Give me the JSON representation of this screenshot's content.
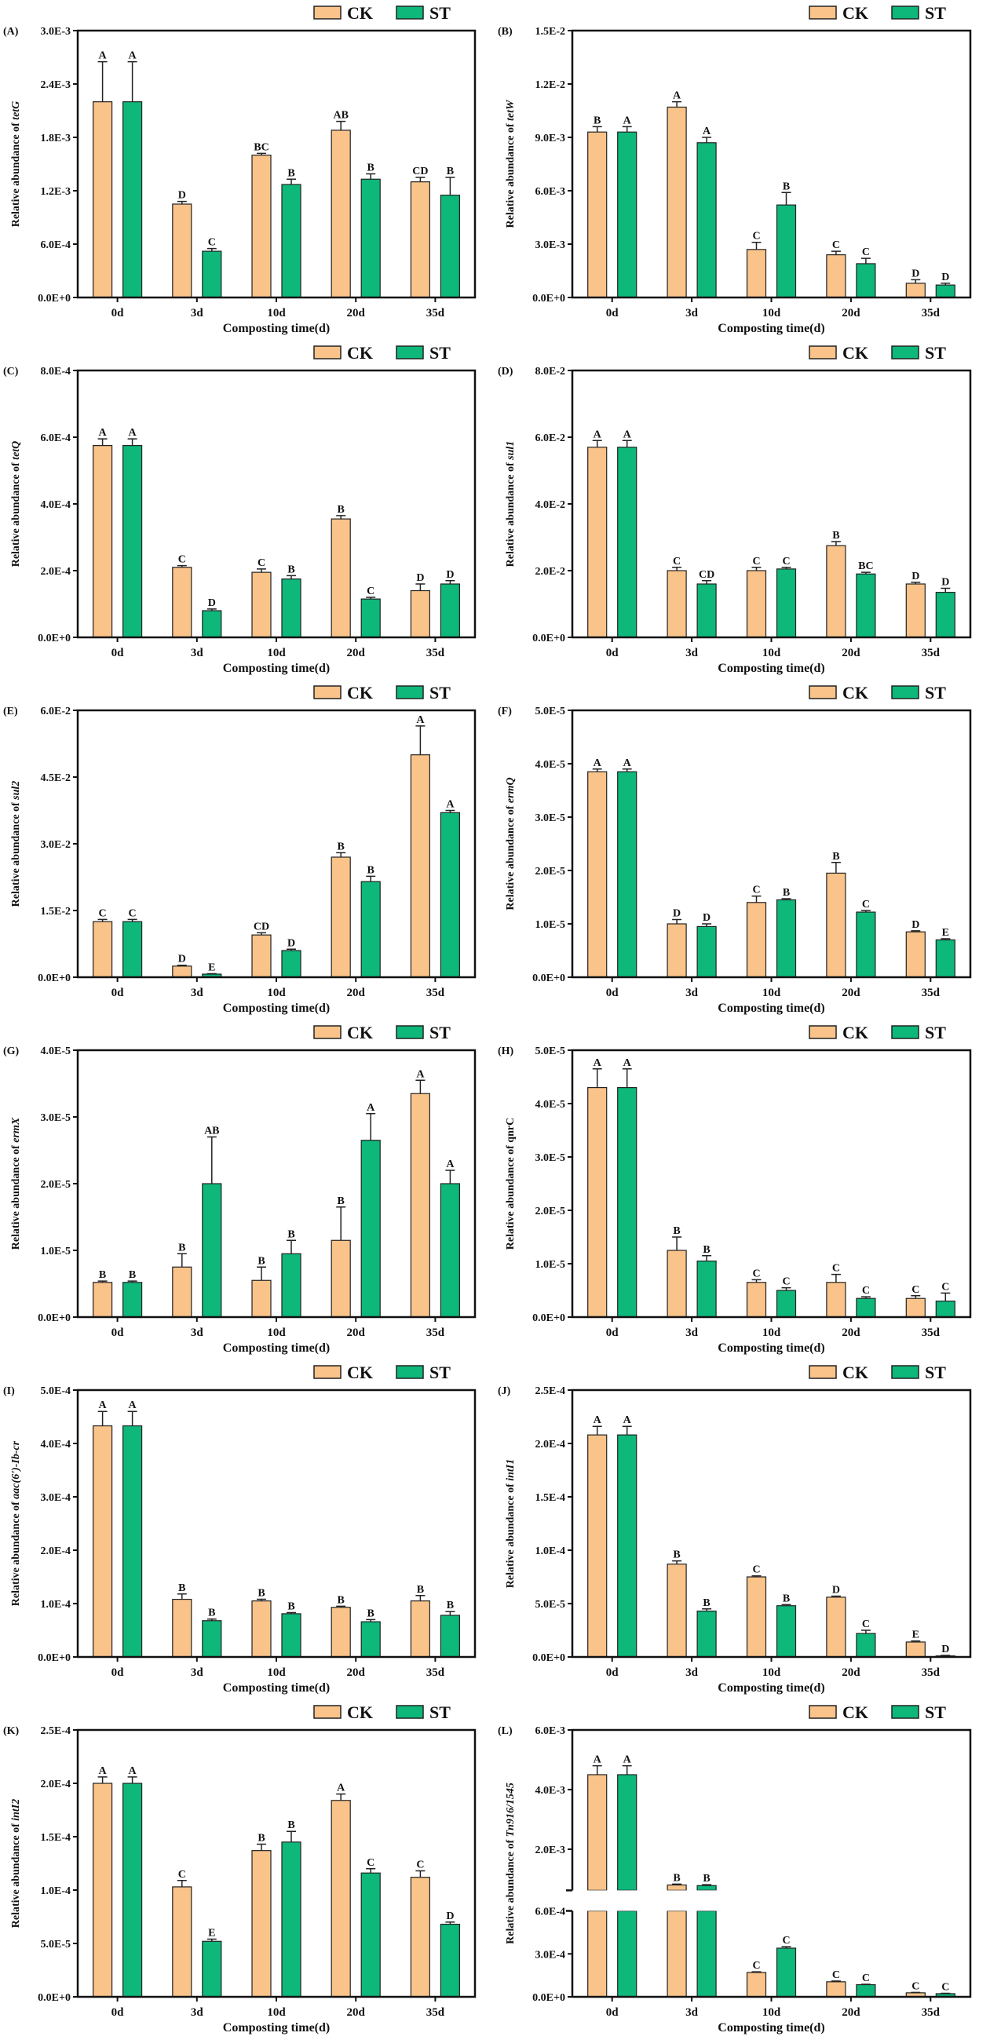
{
  "colors": {
    "CK": "#F9C38A",
    "ST": "#0DB87A",
    "axis": "#111111"
  },
  "chart_data": [
    {
      "type": "bar",
      "panel": "(A)",
      "gene": "tetG",
      "gene_italic": true,
      "ylabel_prefix": "Relative abundance of ",
      "xlabel": "Composting time(d)",
      "categories": [
        "0d",
        "3d",
        "10d",
        "20d",
        "35d"
      ],
      "ylim": [
        0,
        0.003
      ],
      "yticks": [
        "0.0E+0",
        "6.0E-4",
        "1.2E-3",
        "1.8E-3",
        "2.4E-3",
        "3.0E-3"
      ],
      "legend": [
        "CK",
        "ST"
      ],
      "legend_position": "top-right",
      "series": [
        {
          "name": "CK",
          "values": [
            0.0022,
            0.00105,
            0.0016,
            0.00188,
            0.0013
          ],
          "errors": [
            0.00045,
            3e-05,
            2e-05,
            0.0001,
            5e-05
          ],
          "letters": [
            "A",
            "D",
            "BC",
            "AB",
            "CD"
          ]
        },
        {
          "name": "ST",
          "values": [
            0.0022,
            0.00052,
            0.00127,
            0.00133,
            0.00115
          ],
          "errors": [
            0.00045,
            3e-05,
            6e-05,
            6e-05,
            0.0002
          ],
          "letters": [
            "A",
            "C",
            "B",
            "B",
            "B"
          ]
        }
      ]
    },
    {
      "type": "bar",
      "panel": "(B)",
      "gene": "tetW",
      "gene_italic": true,
      "ylabel_prefix": "Relative abundance of ",
      "xlabel": "Composting time(d)",
      "categories": [
        "0d",
        "3d",
        "10d",
        "20d",
        "35d"
      ],
      "ylim": [
        0,
        0.015
      ],
      "yticks": [
        "0.0E+0",
        "3.0E-3",
        "6.0E-3",
        "9.0E-3",
        "1.2E-2",
        "1.5E-2"
      ],
      "legend": [
        "CK",
        "ST"
      ],
      "legend_position": "top-right",
      "series": [
        {
          "name": "CK",
          "values": [
            0.0093,
            0.0107,
            0.0027,
            0.0024,
            0.0008
          ],
          "errors": [
            0.0003,
            0.0003,
            0.0004,
            0.0002,
            0.0002
          ],
          "letters": [
            "B",
            "A",
            "C",
            "C",
            "D"
          ]
        },
        {
          "name": "ST",
          "values": [
            0.0093,
            0.0087,
            0.0052,
            0.0019,
            0.0007
          ],
          "errors": [
            0.0003,
            0.0003,
            0.0007,
            0.0003,
            0.0001
          ],
          "letters": [
            "A",
            "A",
            "B",
            "C",
            "D"
          ]
        }
      ]
    },
    {
      "type": "bar",
      "panel": "(C)",
      "gene": "tetQ",
      "gene_italic": true,
      "ylabel_prefix": "Relative abundance of ",
      "xlabel": "Composting time(d)",
      "categories": [
        "0d",
        "3d",
        "10d",
        "20d",
        "35d"
      ],
      "ylim": [
        0,
        0.0008
      ],
      "yticks": [
        "0.0E+0",
        "2.0E-4",
        "4.0E-4",
        "6.0E-4",
        "8.0E-4"
      ],
      "legend": [
        "CK",
        "ST"
      ],
      "legend_position": "top-right",
      "series": [
        {
          "name": "CK",
          "values": [
            0.000575,
            0.00021,
            0.000195,
            0.000355,
            0.00014
          ],
          "errors": [
            2e-05,
            5e-06,
            1e-05,
            1e-05,
            2e-05
          ],
          "letters": [
            "A",
            "C",
            "C",
            "B",
            "D"
          ]
        },
        {
          "name": "ST",
          "values": [
            0.000575,
            8e-05,
            0.000175,
            0.000115,
            0.00016
          ],
          "errors": [
            2e-05,
            5e-06,
            1e-05,
            5e-06,
            1e-05
          ],
          "letters": [
            "A",
            "D",
            "B",
            "C",
            "D"
          ]
        }
      ]
    },
    {
      "type": "bar",
      "panel": "(D)",
      "gene": "sul1",
      "gene_italic": true,
      "ylabel_prefix": "Relative abundance of ",
      "xlabel": "Composting time(d)",
      "categories": [
        "0d",
        "3d",
        "10d",
        "20d",
        "35d"
      ],
      "ylim": [
        0,
        0.08
      ],
      "yticks": [
        "0.0E+0",
        "2.0E-2",
        "4.0E-2",
        "6.0E-2",
        "8.0E-2"
      ],
      "legend": [
        "CK",
        "ST"
      ],
      "legend_position": "top-right",
      "series": [
        {
          "name": "CK",
          "values": [
            0.057,
            0.02,
            0.02,
            0.0275,
            0.016
          ],
          "errors": [
            0.002,
            0.001,
            0.001,
            0.0012,
            0.0005
          ],
          "letters": [
            "A",
            "C",
            "C",
            "B",
            "D"
          ]
        },
        {
          "name": "ST",
          "values": [
            0.057,
            0.016,
            0.0205,
            0.019,
            0.0135
          ],
          "errors": [
            0.002,
            0.001,
            0.0005,
            0.0005,
            0.0012
          ],
          "letters": [
            "A",
            "CD",
            "C",
            "BC",
            "D"
          ]
        }
      ]
    },
    {
      "type": "bar",
      "panel": "(E)",
      "gene": "sul2",
      "gene_italic": true,
      "ylabel_prefix": "Relative abundance of ",
      "xlabel": "Composting time(d)",
      "categories": [
        "0d",
        "3d",
        "10d",
        "20d",
        "35d"
      ],
      "ylim": [
        0,
        0.06
      ],
      "yticks": [
        "0.0E+0",
        "1.5E-2",
        "3.0E-2",
        "4.5E-2",
        "6.0E-2"
      ],
      "legend": [
        "CK",
        "ST"
      ],
      "legend_position": "top-right",
      "series": [
        {
          "name": "CK",
          "values": [
            0.0125,
            0.0025,
            0.0095,
            0.027,
            0.05
          ],
          "errors": [
            0.0005,
            0.0002,
            0.0005,
            0.001,
            0.0065
          ],
          "letters": [
            "C",
            "D",
            "CD",
            "B",
            "A"
          ]
        },
        {
          "name": "ST",
          "values": [
            0.0125,
            0.0007,
            0.006,
            0.0215,
            0.037
          ],
          "errors": [
            0.0005,
            0.0001,
            0.0003,
            0.0012,
            0.0005
          ],
          "letters": [
            "C",
            "E",
            "D",
            "B",
            "A"
          ]
        }
      ]
    },
    {
      "type": "bar",
      "panel": "(F)",
      "gene": "ermQ",
      "gene_italic": true,
      "ylabel_prefix": "Relative abundance of ",
      "xlabel": "Composting time(d)",
      "categories": [
        "0d",
        "3d",
        "10d",
        "20d",
        "35d"
      ],
      "ylim": [
        0,
        5e-05
      ],
      "yticks": [
        "0.0E+0",
        "1.0E-5",
        "2.0E-5",
        "3.0E-5",
        "4.0E-5",
        "5.0E-5"
      ],
      "legend": [
        "CK",
        "ST"
      ],
      "legend_position": "top-right",
      "series": [
        {
          "name": "CK",
          "values": [
            3.85e-05,
            1e-05,
            1.4e-05,
            1.95e-05,
            8.5e-06
          ],
          "errors": [
            5e-07,
            8e-07,
            1.2e-06,
            2e-06,
            2e-07
          ],
          "letters": [
            "A",
            "D",
            "C",
            "B",
            "D"
          ]
        },
        {
          "name": "ST",
          "values": [
            3.85e-05,
            9.5e-06,
            1.45e-05,
            1.22e-05,
            7e-06
          ],
          "errors": [
            5e-07,
            5e-07,
            2e-07,
            3e-07,
            2e-07
          ],
          "letters": [
            "A",
            "D",
            "B",
            "C",
            "E"
          ]
        }
      ]
    },
    {
      "type": "bar",
      "panel": "(G)",
      "gene": "ermX",
      "gene_italic": true,
      "ylabel_prefix": "Relative abundance of ",
      "xlabel": "Composting time(d)",
      "categories": [
        "0d",
        "3d",
        "10d",
        "20d",
        "35d"
      ],
      "ylim": [
        0,
        4e-05
      ],
      "yticks": [
        "0.0E+0",
        "1.0E-5",
        "2.0E-5",
        "3.0E-5",
        "4.0E-5"
      ],
      "legend": [
        "CK",
        "ST"
      ],
      "legend_position": "top-right",
      "series": [
        {
          "name": "CK",
          "values": [
            5.2e-06,
            7.5e-06,
            5.5e-06,
            1.15e-05,
            3.35e-05
          ],
          "errors": [
            2e-07,
            2e-06,
            2e-06,
            5e-06,
            2e-06
          ],
          "letters": [
            "B",
            "B",
            "B",
            "B",
            "A"
          ]
        },
        {
          "name": "ST",
          "values": [
            5.2e-06,
            2e-05,
            9.5e-06,
            2.65e-05,
            2e-05
          ],
          "errors": [
            2e-07,
            7e-06,
            2e-06,
            4e-06,
            2e-06
          ],
          "letters": [
            "B",
            "AB",
            "B",
            "A",
            "A"
          ]
        }
      ]
    },
    {
      "type": "bar",
      "panel": "(H)",
      "gene": "qnrC",
      "gene_italic": false,
      "ylabel_prefix": "Relative abundance of ",
      "xlabel": "Composting time(d)",
      "categories": [
        "0d",
        "3d",
        "10d",
        "20d",
        "35d"
      ],
      "ylim": [
        0,
        5e-05
      ],
      "yticks": [
        "0.0E+0",
        "1.0E-5",
        "2.0E-5",
        "3.0E-5",
        "4.0E-5",
        "5.0E-5"
      ],
      "legend": [
        "CK",
        "ST"
      ],
      "legend_position": "top-right",
      "series": [
        {
          "name": "CK",
          "values": [
            4.3e-05,
            1.25e-05,
            6.5e-06,
            6.5e-06,
            3.5e-06
          ],
          "errors": [
            3.5e-06,
            2.5e-06,
            5e-07,
            1.5e-06,
            5e-07
          ],
          "letters": [
            "A",
            "B",
            "C",
            "C",
            "C"
          ]
        },
        {
          "name": "ST",
          "values": [
            4.3e-05,
            1.05e-05,
            5e-06,
            3.5e-06,
            3e-06
          ],
          "errors": [
            3.5e-06,
            1e-06,
            5e-07,
            3e-07,
            1.5e-06
          ],
          "letters": [
            "A",
            "B",
            "C",
            "C",
            "C"
          ]
        }
      ]
    },
    {
      "type": "bar",
      "panel": "(I)",
      "gene": "aac(6')-Ib-cr",
      "gene_italic": true,
      "ylabel_prefix": "Relative abundance of ",
      "xlabel": "Composting time(d)",
      "categories": [
        "0d",
        "3d",
        "10d",
        "20d",
        "35d"
      ],
      "ylim": [
        0,
        0.0005
      ],
      "yticks": [
        "0.0E+0",
        "1.0E-4",
        "2.0E-4",
        "3.0E-4",
        "4.0E-4",
        "5.0E-4"
      ],
      "legend": [
        "CK",
        "ST"
      ],
      "legend_position": "top-right",
      "series": [
        {
          "name": "CK",
          "values": [
            0.000433,
            0.000108,
            0.000105,
            9.3e-05,
            0.000105
          ],
          "errors": [
            2.7e-05,
            1e-05,
            3e-06,
            2e-06,
            1e-05
          ],
          "letters": [
            "A",
            "B",
            "B",
            "B",
            "B"
          ]
        },
        {
          "name": "ST",
          "values": [
            0.000433,
            6.8e-05,
            8.1e-05,
            6.6e-05,
            7.8e-05
          ],
          "errors": [
            2.7e-05,
            3e-06,
            2e-06,
            4e-06,
            7e-06
          ],
          "letters": [
            "A",
            "B",
            "B",
            "B",
            "B"
          ]
        }
      ]
    },
    {
      "type": "bar",
      "panel": "(J)",
      "gene": "intI1",
      "gene_italic": true,
      "ylabel_prefix": "Relative abundance of ",
      "xlabel": "Composting time(d)",
      "categories": [
        "0d",
        "3d",
        "10d",
        "20d",
        "35d"
      ],
      "ylim": [
        0,
        0.00025
      ],
      "yticks": [
        "0.0E+0",
        "5.0E-5",
        "1.0E-4",
        "1.5E-4",
        "2.0E-4",
        "2.5E-4"
      ],
      "legend": [
        "CK",
        "ST"
      ],
      "legend_position": "top-right",
      "series": [
        {
          "name": "CK",
          "values": [
            0.000208,
            8.7e-05,
            7.5e-05,
            5.6e-05,
            1.4e-05
          ],
          "errors": [
            8e-06,
            3e-06,
            1e-06,
            1e-06,
            1e-06
          ],
          "letters": [
            "A",
            "B",
            "C",
            "D",
            "E"
          ]
        },
        {
          "name": "ST",
          "values": [
            0.000208,
            4.3e-05,
            4.8e-05,
            2.2e-05,
            1e-06
          ],
          "errors": [
            8e-06,
            2e-06,
            1e-06,
            3e-06,
            5e-07
          ],
          "letters": [
            "A",
            "B",
            "B",
            "C",
            "D"
          ]
        }
      ]
    },
    {
      "type": "bar",
      "panel": "(K)",
      "gene": "intI2",
      "gene_italic": true,
      "ylabel_prefix": "Relative abundance of ",
      "xlabel": "Composting time(d)",
      "categories": [
        "0d",
        "3d",
        "10d",
        "20d",
        "35d"
      ],
      "ylim": [
        0,
        0.00025
      ],
      "yticks": [
        "0.0E+0",
        "5.0E-5",
        "1.0E-4",
        "1.5E-4",
        "2.0E-4",
        "2.5E-4"
      ],
      "legend": [
        "CK",
        "ST"
      ],
      "legend_position": "top-right",
      "series": [
        {
          "name": "CK",
          "values": [
            0.0002,
            0.000103,
            0.000137,
            0.000184,
            0.000112
          ],
          "errors": [
            6e-06,
            6e-06,
            6e-06,
            6e-06,
            6e-06
          ],
          "letters": [
            "A",
            "C",
            "B",
            "A",
            "C"
          ]
        },
        {
          "name": "ST",
          "values": [
            0.0002,
            5.2e-05,
            0.000145,
            0.000116,
            6.8e-05
          ],
          "errors": [
            6e-06,
            2e-06,
            1e-05,
            4e-06,
            2e-06
          ],
          "letters": [
            "A",
            "E",
            "B",
            "C",
            "D"
          ]
        }
      ]
    },
    {
      "type": "bar",
      "panel": "(L)",
      "gene": "Tn916/1545",
      "gene_italic": true,
      "ylabel_prefix": "Relative abundance of ",
      "xlabel": "Composting time(d)",
      "categories": [
        "0d",
        "3d",
        "10d",
        "20d",
        "35d"
      ],
      "ylim": [
        0,
        0.006
      ],
      "axis_break": [
        0.0006,
        0.00062
      ],
      "yticks": [
        "0.0E+0",
        "3.0E-4",
        "6.0E-4",
        "2.0E-3",
        "4.0E-3",
        "6.0E-3"
      ],
      "ytick_values": [
        0,
        0.0003,
        0.0006,
        0.002,
        0.004,
        0.006
      ],
      "legend": [
        "CK",
        "ST"
      ],
      "legend_position": "top-right",
      "series": [
        {
          "name": "CK",
          "values": [
            0.0045,
            0.0008,
            0.00017,
            0.000105,
            2.8e-05
          ],
          "errors": [
            0.0003,
            3e-05,
            5e-06,
            5e-06,
            3e-06
          ],
          "letters": [
            "A",
            "B",
            "C",
            "C",
            "C"
          ]
        },
        {
          "name": "ST",
          "values": [
            0.0045,
            0.00078,
            0.00034,
            8.5e-05,
            2.2e-05
          ],
          "errors": [
            0.0003,
            3e-05,
            1e-05,
            3e-06,
            3e-06
          ],
          "letters": [
            "A",
            "B",
            "C",
            "C",
            "C"
          ]
        }
      ]
    }
  ]
}
